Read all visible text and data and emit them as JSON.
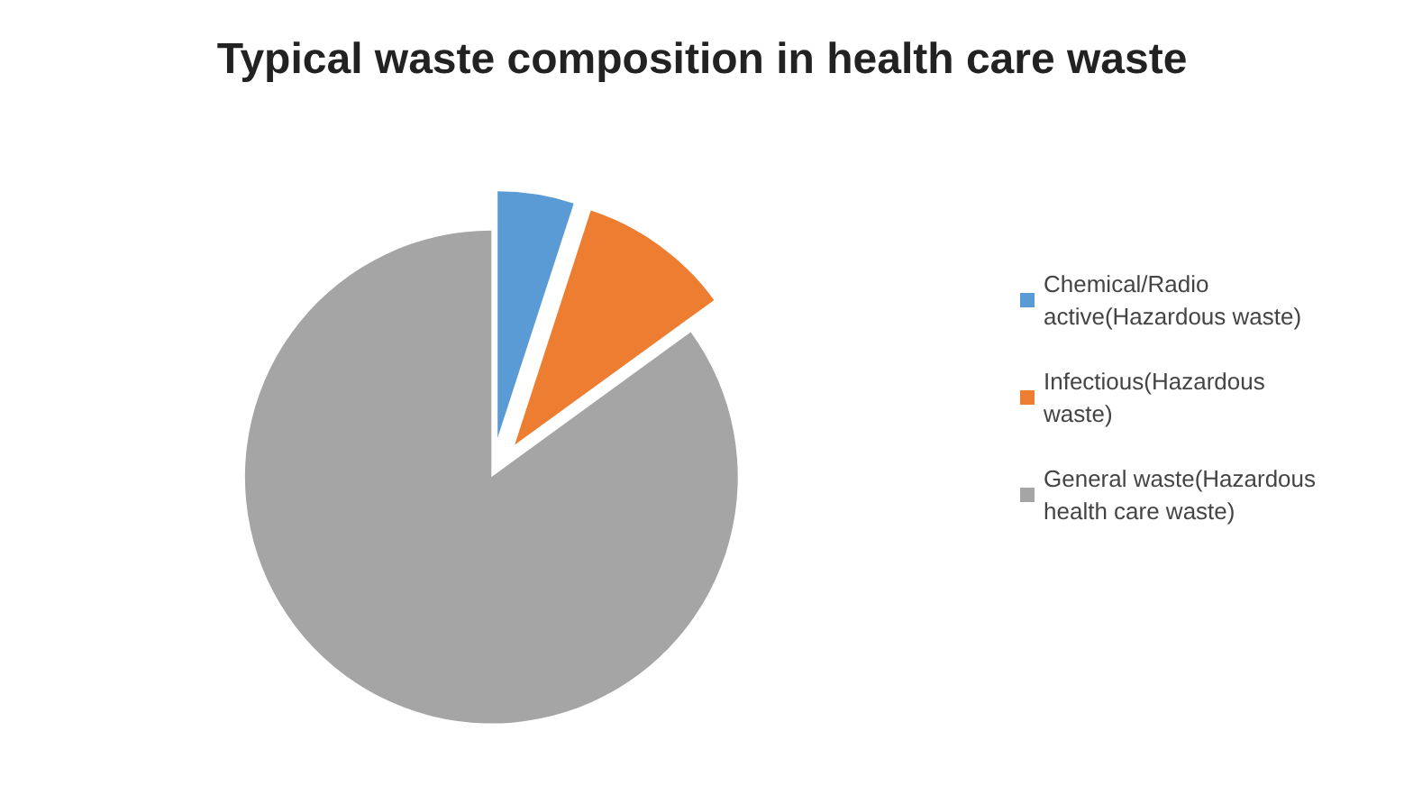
{
  "chart_data": {
    "type": "pie",
    "title": "Typical waste composition in health care waste",
    "categories": [
      "Chemical/Radio active(Hazardous waste)",
      "Infectious(Hazardous waste)",
      "General waste(Hazardous health care waste)"
    ],
    "values": [
      5,
      10,
      85
    ],
    "colors": [
      "#5b9bd5",
      "#ed7d31",
      "#a5a5a5"
    ],
    "legend": "right"
  }
}
